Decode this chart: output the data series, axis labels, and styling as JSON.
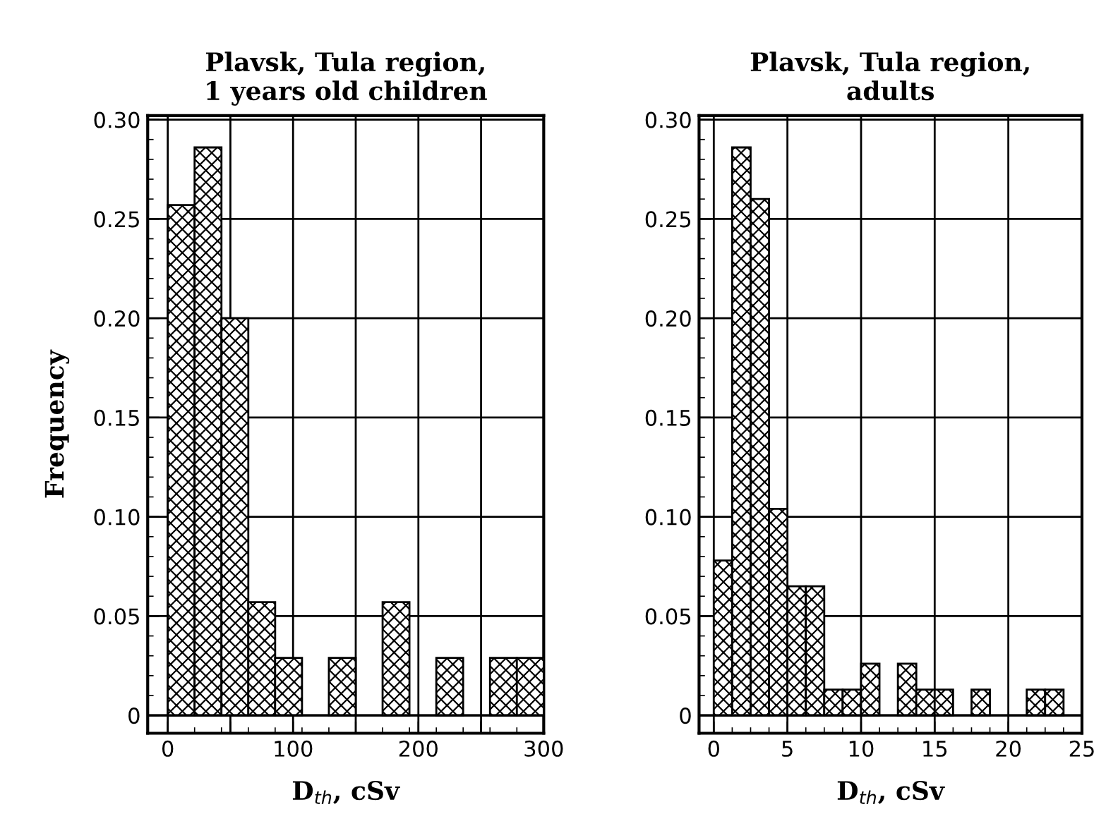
{
  "chart_data": [
    {
      "type": "histogram",
      "title": "Plavsk, Tula region,\n1 years old children",
      "xlabel": "D$_{th}$, cSv",
      "ylabel": "Frequency",
      "bins": [
        0,
        21.43,
        42.86,
        64.29,
        85.71,
        107.14,
        128.57,
        150,
        171.43,
        192.86,
        214.29,
        235.71,
        257.14,
        278.57,
        300
      ],
      "values": [
        0.257,
        0.286,
        0.2,
        0.057,
        0.029,
        0,
        0.029,
        0,
        0.057,
        0,
        0.029,
        0,
        0.029,
        0.029
      ],
      "color": "#000000",
      "xlim": [
        -16,
        300
      ],
      "ylim": [
        -0.009,
        0.302
      ],
      "xticks": [
        0,
        {
          "value": 50,
          "label": null
        },
        100,
        {
          "value": 150,
          "label": null
        },
        200,
        {
          "value": 250,
          "label": null
        },
        300
      ],
      "yticks": [
        {
          "value": 0,
          "label": "0"
        },
        {
          "value": 0.05,
          "label": "0.05"
        },
        {
          "value": 0.1,
          "label": "0.10"
        },
        {
          "value": 0.15,
          "label": "0.15"
        },
        {
          "value": 0.2,
          "label": "0.20"
        },
        {
          "value": 0.25,
          "label": "0.25"
        },
        {
          "value": 0.3,
          "label": "0.30"
        }
      ],
      "grid": true,
      "ref_lines": [
        {
          "axis": "y",
          "value": 0
        }
      ]
    },
    {
      "type": "histogram",
      "title": "Plavsk, Tula region,\nadults",
      "xlabel": "D$_{th}$, cSv",
      "bins": [
        0,
        1.25,
        2.5,
        3.75,
        5,
        6.25,
        7.5,
        8.75,
        10,
        11.25,
        12.5,
        13.75,
        15,
        16.25,
        17.5,
        18.75,
        20,
        21.25,
        22.5,
        23.75,
        25
      ],
      "values": [
        0.078,
        0.286,
        0.26,
        0.104,
        0.065,
        0.065,
        0.013,
        0.013,
        0.026,
        0,
        0.026,
        0.013,
        0.013,
        0,
        0.013,
        0,
        0,
        0.013,
        0.013,
        0
      ],
      "color": "#000000",
      "xlim": [
        -1,
        25
      ],
      "ylim": [
        -0.009,
        0.302
      ],
      "xticks": [
        0,
        5,
        10,
        15,
        20,
        25
      ],
      "yticks": [
        {
          "value": 0,
          "label": "0"
        },
        {
          "value": 0.05,
          "label": "0.05"
        },
        {
          "value": 0.1,
          "label": "0.10"
        },
        {
          "value": 0.15,
          "label": "0.15"
        },
        {
          "value": 0.2,
          "label": "0.20"
        },
        {
          "value": 0.25,
          "label": "0.25"
        },
        {
          "value": 0.3,
          "label": "0.30"
        }
      ],
      "grid": true,
      "ref_lines": [
        {
          "axis": "y",
          "value": 0
        }
      ]
    }
  ]
}
